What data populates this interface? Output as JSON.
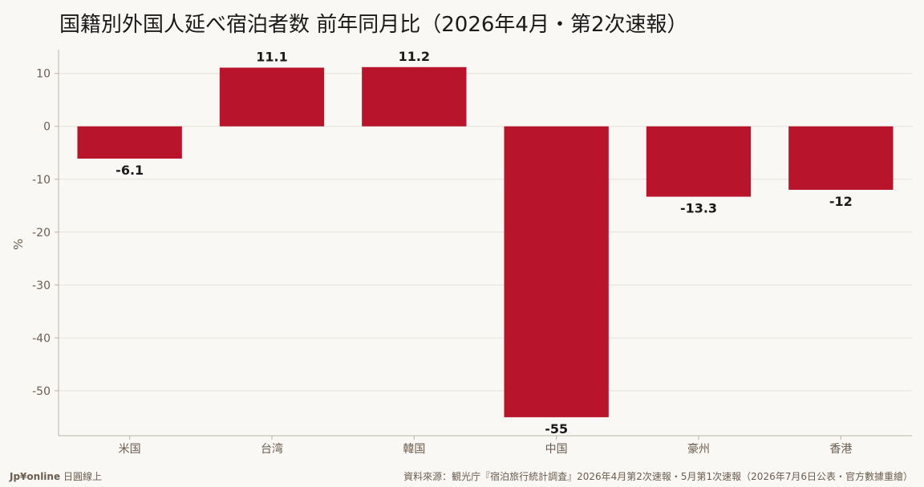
{
  "title": "国籍別外国人延べ宿泊者数 前年同月比（2026年4月・第2次速報）",
  "footer": {
    "brand": "Jp¥online",
    "brand_sub": "日圓線上",
    "source": "資料來源：観光庁『宿泊旅行統計調査』2026年4月第2次速報・5月第1次速報（2026年7月6日公表・官方數據重繪）"
  },
  "colors": {
    "bar": "#b8142c",
    "background": "#faf8f4",
    "grid": "#e6e2da",
    "tick_text": "#6b5d4f",
    "label_text": "#1a1a1a"
  },
  "chart_data": {
    "type": "bar",
    "categories": [
      "米国",
      "台湾",
      "韓国",
      "中国",
      "豪州",
      "香港"
    ],
    "values": [
      -6.1,
      11.1,
      11.2,
      -55,
      -13.3,
      -12
    ],
    "data_labels": [
      "-6.1",
      "11.1",
      "11.2",
      "-55",
      "-13.3",
      "-12"
    ],
    "ylabel": "%",
    "yticks": [
      10,
      0,
      -10,
      -20,
      -30,
      -40,
      -50
    ],
    "ylim": [
      -58.5,
      14.5
    ],
    "grid": true,
    "legend": "none"
  }
}
